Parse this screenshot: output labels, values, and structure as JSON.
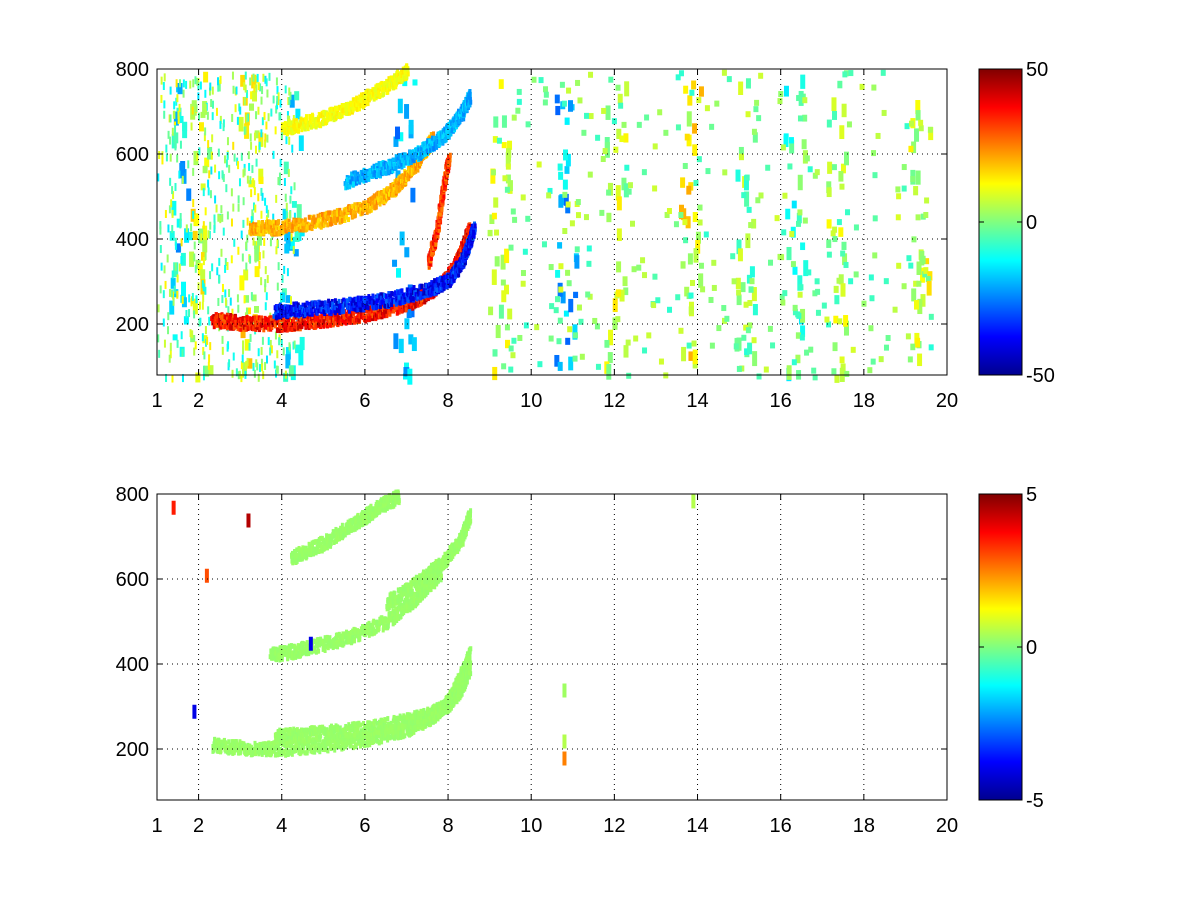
{
  "chart_data": [
    {
      "type": "heatmap",
      "title": "",
      "xlabel": "",
      "ylabel": "",
      "xlim": [
        1,
        20
      ],
      "ylim": [
        80,
        800
      ],
      "xticks": [
        1,
        2,
        4,
        6,
        8,
        10,
        12,
        14,
        16,
        18,
        20
      ],
      "yticks": [
        200,
        400,
        600,
        800
      ],
      "grid": true,
      "colormap": "jet",
      "colorbar": {
        "range": [
          -50,
          50
        ],
        "ticks": [
          -50,
          0,
          50
        ]
      },
      "features": [
        {
          "name": "",
          "points": [
            [
              2.3,
              215
            ],
            [
              3.0,
              208
            ],
            [
              4.0,
              205
            ],
            [
              5.0,
              215
            ],
            [
              6.0,
              228
            ],
            [
              7.0,
              252
            ],
            [
              7.6,
              282
            ],
            [
              8.0,
              320
            ],
            [
              8.3,
              380
            ],
            [
              8.5,
              430
            ]
          ],
          "value": 45
        },
        {
          "name": "",
          "points": [
            [
              3.8,
              235
            ],
            [
              4.5,
              240
            ],
            [
              5.5,
              248
            ],
            [
              6.5,
              262
            ],
            [
              7.5,
              285
            ],
            [
              8.0,
              310
            ],
            [
              8.3,
              350
            ],
            [
              8.5,
              400
            ],
            [
              8.6,
              430
            ]
          ],
          "value": -45
        },
        {
          "name": "",
          "points": [
            [
              3.2,
              432
            ],
            [
              4.0,
              432
            ],
            [
              5.0,
              450
            ],
            [
              6.0,
              480
            ],
            [
              6.7,
              525
            ],
            [
              7.2,
              580
            ],
            [
              7.6,
              640
            ]
          ],
          "value": 25
        },
        {
          "name": "",
          "points": [
            [
              5.5,
              540
            ],
            [
              6.5,
              575
            ],
            [
              7.3,
              610
            ],
            [
              7.9,
              650
            ],
            [
              8.3,
              700
            ],
            [
              8.5,
              740
            ]
          ],
          "value": -25
        },
        {
          "name": "",
          "points": [
            [
              4.0,
              665
            ],
            [
              5.0,
              690
            ],
            [
              5.8,
              725
            ],
            [
              6.5,
              765
            ],
            [
              7.0,
              800
            ]
          ],
          "value": 15
        },
        {
          "name": "",
          "points": [
            [
              7.5,
              350
            ],
            [
              7.7,
              420
            ],
            [
              7.85,
              520
            ],
            [
              8.0,
              600
            ]
          ],
          "value": 40
        }
      ],
      "vertical_streaks": [
        {
          "x": 1.5,
          "value": -15
        },
        {
          "x": 2.0,
          "value": 8
        },
        {
          "x": 3.2,
          "value": 10
        },
        {
          "x": 4.2,
          "value": -12
        },
        {
          "x": 6.9,
          "value": -20
        },
        {
          "x": 9.2,
          "value": 5
        },
        {
          "x": 10.8,
          "value": -18
        },
        {
          "x": 12.0,
          "value": 5
        },
        {
          "x": 13.8,
          "value": 12
        },
        {
          "x": 15.1,
          "value": 0
        },
        {
          "x": 16.3,
          "value": -5
        },
        {
          "x": 17.3,
          "value": 3
        },
        {
          "x": 19.3,
          "value": 6
        }
      ]
    },
    {
      "type": "heatmap",
      "title": "",
      "xlabel": "",
      "ylabel": "",
      "xlim": [
        1,
        20
      ],
      "ylim": [
        80,
        800
      ],
      "xticks": [
        1,
        2,
        4,
        6,
        8,
        10,
        12,
        14,
        16,
        18,
        20
      ],
      "yticks": [
        200,
        400,
        600,
        800
      ],
      "grid": true,
      "colormap": "jet",
      "colorbar": {
        "range": [
          -5,
          5
        ],
        "ticks": [
          -5,
          0,
          5
        ]
      },
      "features": [
        {
          "name": "",
          "points": [
            [
              2.3,
              215
            ],
            [
              3.0,
              208
            ],
            [
              4.0,
              205
            ],
            [
              5.0,
              215
            ],
            [
              6.0,
              228
            ],
            [
              7.0,
              252
            ],
            [
              7.6,
              282
            ],
            [
              8.0,
              320
            ],
            [
              8.3,
              380
            ],
            [
              8.5,
              430
            ]
          ],
          "value": 0.3
        },
        {
          "name": "",
          "points": [
            [
              3.8,
              235
            ],
            [
              4.5,
              240
            ],
            [
              5.5,
              248
            ],
            [
              6.5,
              262
            ],
            [
              7.5,
              285
            ],
            [
              8.0,
              310
            ],
            [
              8.3,
              350
            ],
            [
              8.5,
              400
            ]
          ],
          "value": 0.3
        },
        {
          "name": "",
          "points": [
            [
              3.7,
              425
            ],
            [
              4.5,
              440
            ],
            [
              5.5,
              465
            ],
            [
              6.5,
              505
            ],
            [
              7.2,
              560
            ],
            [
              7.8,
              620
            ]
          ],
          "value": 0.3
        },
        {
          "name": "",
          "points": [
            [
              6.5,
              550
            ],
            [
              7.3,
              600
            ],
            [
              7.9,
              650
            ],
            [
              8.3,
              700
            ],
            [
              8.5,
              760
            ]
          ],
          "value": 0.3
        },
        {
          "name": "",
          "points": [
            [
              4.2,
              655
            ],
            [
              5.0,
              690
            ],
            [
              5.8,
              740
            ],
            [
              6.3,
              775
            ],
            [
              6.8,
              800
            ]
          ],
          "value": 0.3
        }
      ],
      "spots": [
        {
          "x": 10.8,
          "y": 180,
          "value": 2.5
        },
        {
          "x": 10.8,
          "y": 220,
          "value": 0.5
        },
        {
          "x": 10.8,
          "y": 340,
          "value": 0.3
        },
        {
          "x": 13.9,
          "y": 785,
          "value": 0.5
        },
        {
          "x": 1.4,
          "y": 770,
          "value": 3.5
        },
        {
          "x": 3.2,
          "y": 740,
          "value": 4.5
        },
        {
          "x": 1.9,
          "y": 290,
          "value": -4
        },
        {
          "x": 2.2,
          "y": 610,
          "value": 3
        },
        {
          "x": 4.7,
          "y": 450,
          "value": -4
        }
      ]
    }
  ]
}
